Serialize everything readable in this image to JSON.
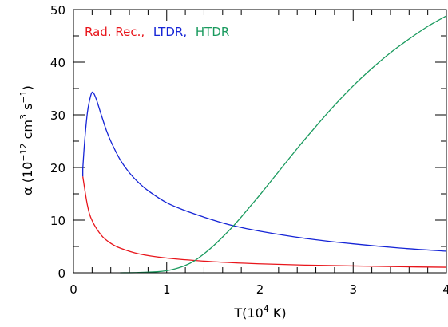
{
  "chart_data": {
    "type": "line",
    "xlabel": {
      "base": "T(10",
      "sup": "4",
      "rest": " K)"
    },
    "ylabel": {
      "symbol": "α (10",
      "sup1": "−12",
      "mid": " cm",
      "sup2": "3",
      "mid2": " s",
      "sup3": "−1",
      "end": ")"
    },
    "xlim": [
      0,
      4
    ],
    "ylim": [
      0,
      50
    ],
    "x_ticks": [
      0,
      1,
      2,
      3,
      4
    ],
    "y_ticks": [
      0,
      10,
      20,
      30,
      40,
      50
    ],
    "legend": {
      "position": "top-left",
      "entries": [
        {
          "text": "Rad. Rec.,",
          "color": "#e8151b"
        },
        {
          "text": "LTDR,",
          "color": "#1524d6"
        },
        {
          "text": "HTDR",
          "color": "#1a9a5e"
        }
      ]
    },
    "series": [
      {
        "name": "Rad. Rec.",
        "color": "#e8151b",
        "x": [
          0.1,
          0.15,
          0.2,
          0.3,
          0.4,
          0.5,
          0.7,
          1.0,
          1.5,
          2.0,
          2.5,
          3.0,
          3.5,
          4.0
        ],
        "y": [
          18.3,
          12.8,
          9.9,
          7.1,
          5.6,
          4.7,
          3.6,
          2.8,
          2.1,
          1.7,
          1.45,
          1.3,
          1.15,
          1.05
        ]
      },
      {
        "name": "LTDR",
        "color": "#1524d6",
        "x": [
          0.1,
          0.12,
          0.15,
          0.18,
          0.2,
          0.22,
          0.25,
          0.3,
          0.35,
          0.4,
          0.5,
          0.6,
          0.7,
          0.8,
          1.0,
          1.2,
          1.5,
          1.7,
          2.0,
          2.5,
          3.0,
          3.5,
          4.0
        ],
        "y": [
          19.8,
          25.0,
          30.5,
          33.3,
          34.3,
          34.0,
          32.7,
          29.9,
          27.2,
          25.0,
          21.5,
          19.0,
          17.1,
          15.6,
          13.3,
          11.8,
          10.0,
          9.0,
          7.9,
          6.5,
          5.5,
          4.7,
          4.1
        ]
      },
      {
        "name": "HTDR",
        "color": "#1a9a5e",
        "x": [
          0.5,
          0.7,
          0.9,
          1.0,
          1.1,
          1.2,
          1.3,
          1.4,
          1.5,
          1.6,
          1.7,
          1.8,
          1.9,
          2.0,
          2.2,
          2.4,
          2.6,
          2.8,
          3.0,
          3.2,
          3.4,
          3.6,
          3.8,
          4.0
        ],
        "y": [
          0.0,
          0.05,
          0.2,
          0.4,
          0.8,
          1.4,
          2.3,
          3.6,
          5.1,
          6.8,
          8.6,
          10.6,
          12.7,
          14.8,
          19.2,
          23.6,
          27.8,
          31.8,
          35.5,
          38.8,
          41.8,
          44.4,
          46.8,
          48.8
        ]
      }
    ]
  }
}
